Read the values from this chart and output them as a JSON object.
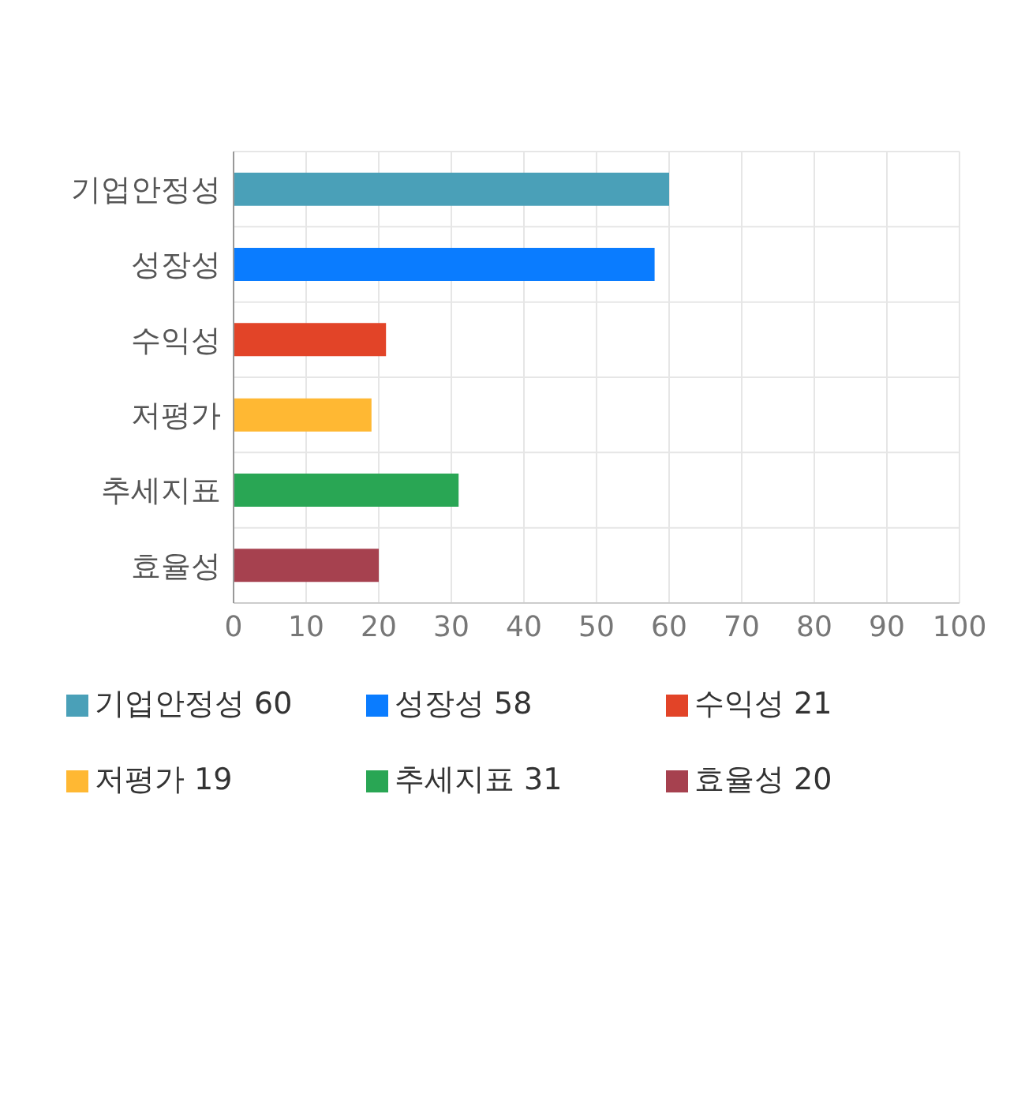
{
  "chart_data": {
    "type": "bar",
    "orientation": "horizontal",
    "stacked": true,
    "categories": [
      "기업안정성",
      "성장성",
      "수익성",
      "저평가",
      "추세지표",
      "효율성"
    ],
    "series": [
      {
        "name": "기업안정성 60",
        "color": "#4aa0b8",
        "values": [
          60,
          null,
          null,
          null,
          null,
          null
        ]
      },
      {
        "name": "성장성 58",
        "color": "#0a7cff",
        "values": [
          null,
          58,
          null,
          null,
          null,
          null
        ]
      },
      {
        "name": "수익성 21",
        "color": "#e24428",
        "values": [
          null,
          null,
          21,
          null,
          null,
          null
        ]
      },
      {
        "name": "저평가 19",
        "color": "#ffb833",
        "values": [
          null,
          null,
          null,
          19,
          null,
          null
        ]
      },
      {
        "name": "추세지표 31",
        "color": "#29a654",
        "values": [
          null,
          null,
          null,
          null,
          31,
          null
        ]
      },
      {
        "name": "효율성 20",
        "color": "#a6414f",
        "values": [
          null,
          null,
          null,
          null,
          null,
          20
        ]
      }
    ],
    "xlim": [
      0,
      100
    ],
    "xticks": [
      0,
      10,
      20,
      30,
      40,
      50,
      60,
      70,
      80,
      90,
      100
    ],
    "grid": true,
    "legend": "bottom"
  }
}
